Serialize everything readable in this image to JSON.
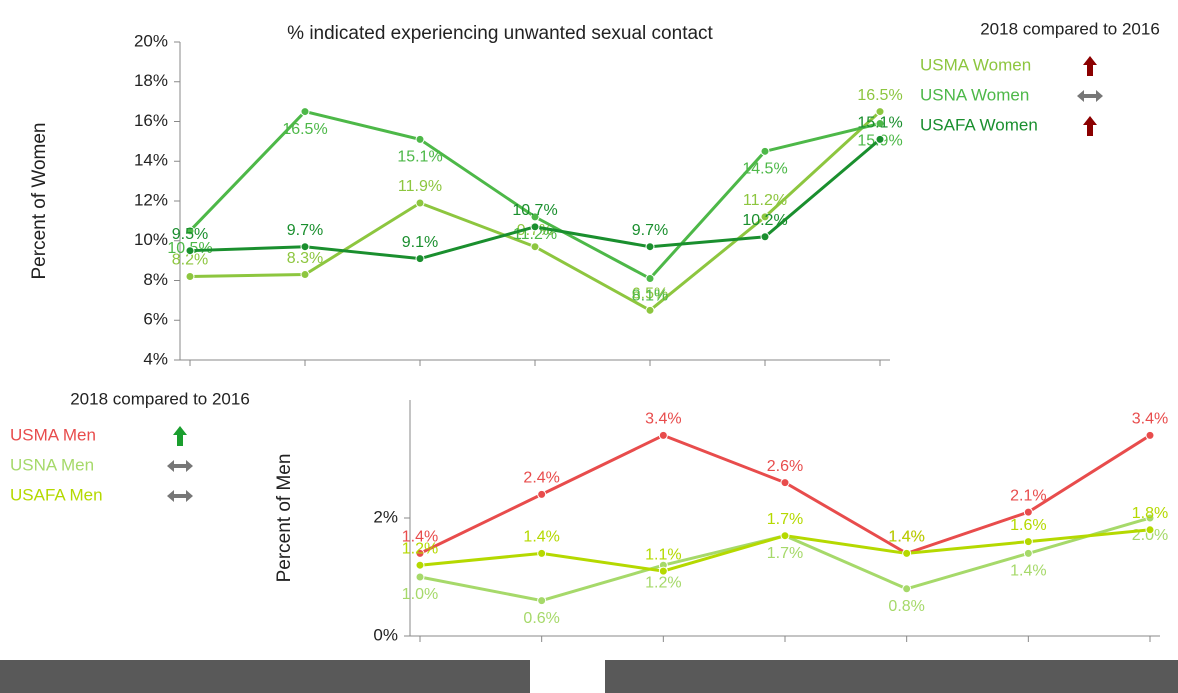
{
  "chart_data": [
    {
      "type": "line",
      "title": "% indicated experiencing unwanted sexual contact",
      "y_label": "Percent of Women",
      "legend_title": "2018 compared to 2016",
      "categories": [
        null,
        null,
        null,
        null,
        null,
        null,
        null
      ],
      "ylim": [
        4,
        20
      ],
      "yticks": [
        {
          "value": 4,
          "label": "4%"
        },
        {
          "value": 6,
          "label": "6%"
        },
        {
          "value": 8,
          "label": "8%"
        },
        {
          "value": 10,
          "label": "10%"
        },
        {
          "value": 12,
          "label": "12%"
        },
        {
          "value": 14,
          "label": "14%"
        },
        {
          "value": 16,
          "label": "16%"
        },
        {
          "value": 18,
          "label": "18%"
        },
        {
          "value": 20,
          "label": "20%"
        }
      ],
      "up_arrow_color": "#8b0000",
      "series": [
        {
          "name": "USMA Women",
          "color": "#8dc63f",
          "trend": "up",
          "values": [
            8.2,
            8.3,
            11.9,
            9.7,
            6.5,
            11.2,
            16.5
          ],
          "value_labels": [
            "8.2%",
            "8.3%",
            "11.9%",
            "9.7%",
            "6.5%",
            "11.2%",
            "16.5%"
          ]
        },
        {
          "name": "USNA Women",
          "color": "#4db848",
          "trend": "same",
          "values": [
            10.5,
            16.5,
            15.1,
            11.2,
            8.1,
            14.5,
            15.9
          ],
          "value_labels": [
            "10.5%",
            "16.5%",
            "15.1%",
            "11.2%",
            "8.1%",
            "14.5%",
            "15.9%"
          ]
        },
        {
          "name": "USAFA Women",
          "color": "#1a8f2e",
          "trend": "up",
          "values": [
            9.5,
            9.7,
            9.1,
            10.7,
            9.7,
            10.2,
            15.1
          ],
          "value_labels": [
            "9.5%",
            "9.7%",
            "9.1%",
            "10.7%",
            "9.7%",
            "10.2%",
            "15.1%"
          ]
        }
      ]
    },
    {
      "type": "line",
      "y_label": "Percent of Men",
      "legend_title": "2018 compared to 2016",
      "categories": [
        null,
        null,
        null,
        null,
        null,
        null,
        null
      ],
      "ylim": [
        0,
        4
      ],
      "yticks": [
        {
          "value": 0,
          "label": "0%"
        },
        {
          "value": 2,
          "label": "2%"
        }
      ],
      "up_arrow_color": "#1a9e2e",
      "series": [
        {
          "name": "USMA Men",
          "color": "#e84c4c",
          "trend": "up",
          "values": [
            1.4,
            2.4,
            3.4,
            2.6,
            1.4,
            2.1,
            3.4
          ],
          "value_labels": [
            "1.4%",
            "2.4%",
            "3.4%",
            "2.6%",
            "1.4%",
            "2.1%",
            "3.4%"
          ]
        },
        {
          "name": "USNA Men",
          "color": "#a6d96a",
          "trend": "same",
          "values": [
            1.0,
            0.6,
            1.2,
            1.7,
            0.8,
            1.4,
            2.0
          ],
          "value_labels": [
            "1.0%",
            "0.6%",
            "1.2%",
            "1.7%",
            "0.8%",
            "1.4%",
            "2.0%"
          ]
        },
        {
          "name": "USAFA Men",
          "color": "#b5d900",
          "trend": "same",
          "values": [
            1.2,
            1.4,
            1.1,
            1.7,
            1.4,
            1.6,
            1.8
          ],
          "value_labels": [
            "1.2%",
            "1.4%",
            "1.1%",
            "1.7%",
            "1.4%",
            "1.6%",
            "1.8%"
          ]
        }
      ]
    }
  ]
}
